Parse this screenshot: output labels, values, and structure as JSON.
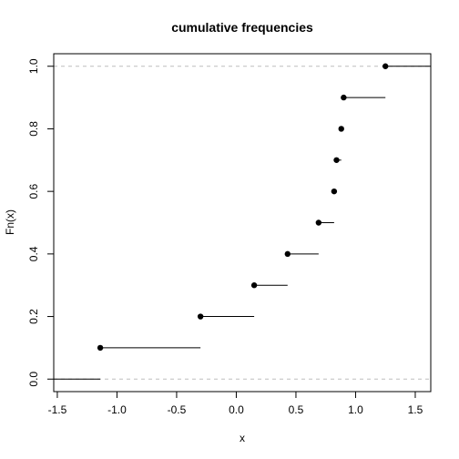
{
  "chart_data": {
    "type": "step",
    "title": "cumulative frequencies",
    "xlabel": "x",
    "ylabel": "Fn(x)",
    "xlim": [
      -1.53,
      1.63
    ],
    "ylim": [
      -0.04,
      1.04
    ],
    "x_ticks": [
      -1.5,
      -1.0,
      -0.5,
      0.0,
      0.5,
      1.0,
      1.5
    ],
    "x_tick_labels": [
      "-1.5",
      "-1.0",
      "-0.5",
      "0.0",
      "0.5",
      "1.0",
      "1.5"
    ],
    "y_ticks": [
      0.0,
      0.2,
      0.4,
      0.6,
      0.8,
      1.0
    ],
    "y_tick_labels": [
      "0.0",
      "0.2",
      "0.4",
      "0.6",
      "0.8",
      "1.0"
    ],
    "reference_lines_y": [
      0.0,
      1.0
    ],
    "steps": [
      {
        "x": -1.14,
        "y": 0.1
      },
      {
        "x": -0.3,
        "y": 0.2
      },
      {
        "x": 0.15,
        "y": 0.3
      },
      {
        "x": 0.43,
        "y": 0.4
      },
      {
        "x": 0.69,
        "y": 0.5
      },
      {
        "x": 0.82,
        "y": 0.6
      },
      {
        "x": 0.84,
        "y": 0.7
      },
      {
        "x": 0.88,
        "y": 0.8
      },
      {
        "x": 0.9,
        "y": 0.9
      },
      {
        "x": 1.25,
        "y": 1.0
      }
    ],
    "colors": {
      "points": "#000000",
      "lines": "#000000",
      "reference": "#bebebe"
    }
  }
}
